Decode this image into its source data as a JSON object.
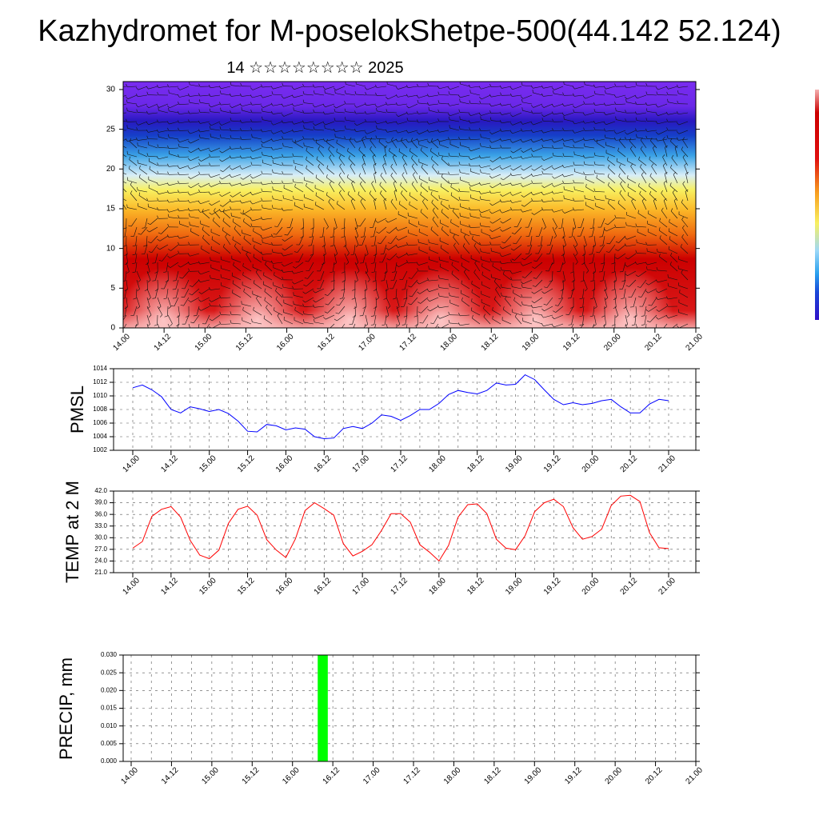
{
  "title": "Kazhydromet for M-poselokShetpe-500(44.142 52.124)",
  "subtitle": "14 ☆☆☆☆☆☆☆☆ 2025",
  "colors": {
    "pmsl_line": "#0000ff",
    "temp_line": "#ff0000",
    "precip_bar": "#00ff00",
    "grid": "#555555"
  },
  "chart_data": [
    {
      "type": "heatmap",
      "y_range": [
        0,
        31
      ],
      "y_ticks": [
        "0",
        "5",
        "10",
        "15",
        "20",
        "25",
        "30"
      ],
      "x_ticks": [
        "14.00",
        "14.12",
        "15.00",
        "15.12",
        "16.00",
        "16.12",
        "17.00",
        "17.12",
        "18.00",
        "18.12",
        "19.00",
        "19.12",
        "20.00",
        "20.12",
        "21.00"
      ],
      "overlay": "wind barbs",
      "colorbar": "rainbow (violet-blue-cyan-yellow-red-pink)"
    },
    {
      "type": "line",
      "ylabel": "PMSL",
      "ylim": [
        1002,
        1014
      ],
      "y_ticks": [
        "1002",
        "1004",
        "1006",
        "1008",
        "1010",
        "1012",
        "1014"
      ],
      "x_ticks": [
        "14.00",
        "14.12",
        "15.00",
        "15.12",
        "16.00",
        "16.12",
        "17.00",
        "17.12",
        "18.00",
        "18.12",
        "19.00",
        "19.12",
        "20.00",
        "20.12",
        "21.00"
      ],
      "step_hours": 3,
      "values": [
        1011.2,
        1011.6,
        1010.9,
        1009.9,
        1008.0,
        1007.5,
        1008.4,
        1008.1,
        1007.7,
        1008.0,
        1007.4,
        1006.3,
        1004.8,
        1004.7,
        1005.8,
        1005.6,
        1005.0,
        1005.3,
        1005.1,
        1004.0,
        1003.7,
        1003.8,
        1005.2,
        1005.5,
        1005.2,
        1006.0,
        1007.2,
        1007.0,
        1006.4,
        1007.1,
        1008.0,
        1008.0,
        1008.9,
        1010.2,
        1010.8,
        1010.5,
        1010.3,
        1010.8,
        1011.9,
        1011.6,
        1011.7,
        1013.1,
        1012.4,
        1010.9,
        1009.5,
        1008.7,
        1009.0,
        1008.7,
        1008.9,
        1009.3,
        1009.5,
        1008.4,
        1007.5,
        1007.5,
        1008.8,
        1009.5,
        1009.3
      ]
    },
    {
      "type": "line",
      "ylabel": "TEMP at 2 M",
      "ylim": [
        21,
        42
      ],
      "y_ticks": [
        "21.0",
        "24.0",
        "27.0",
        "30.0",
        "33.0",
        "36.0",
        "39.0",
        "42.0"
      ],
      "x_ticks": [
        "14.00",
        "14.12",
        "15.00",
        "15.12",
        "16.00",
        "16.12",
        "17.00",
        "17.12",
        "18.00",
        "18.12",
        "19.00",
        "19.12",
        "20.00",
        "20.12",
        "21.00"
      ],
      "step_hours": 3,
      "values": [
        27.3,
        29.0,
        35.5,
        37.3,
        38.0,
        35.3,
        29.3,
        25.5,
        24.6,
        26.8,
        33.7,
        37.3,
        38.1,
        35.8,
        29.5,
        26.8,
        24.9,
        29.7,
        37.0,
        39.0,
        37.5,
        35.8,
        28.5,
        25.3,
        26.5,
        28.2,
        31.9,
        36.2,
        36.2,
        34.0,
        28.2,
        26.3,
        24.0,
        28.0,
        35.3,
        38.5,
        38.7,
        36.2,
        29.6,
        27.3,
        26.9,
        30.5,
        36.7,
        39.0,
        39.9,
        38.0,
        32.6,
        29.6,
        30.3,
        32.2,
        38.3,
        40.7,
        40.9,
        39.3,
        31.3,
        27.4,
        27.2
      ]
    },
    {
      "type": "bar",
      "ylabel": "PRECIP, mm",
      "ylim": [
        0,
        0.03
      ],
      "y_ticks": [
        "0.000",
        "0.005",
        "0.010",
        "0.015",
        "0.020",
        "0.025",
        "0.030"
      ],
      "x_ticks": [
        "14.00",
        "14.12",
        "15.00",
        "15.12",
        "16.00",
        "16.12",
        "17.00",
        "17.12",
        "18.00",
        "18.12",
        "19.00",
        "19.12",
        "20.00",
        "20.12",
        "21.00"
      ],
      "bars": [
        {
          "x_hours": 57,
          "width_hours": 3,
          "value": 0.03
        }
      ]
    }
  ]
}
